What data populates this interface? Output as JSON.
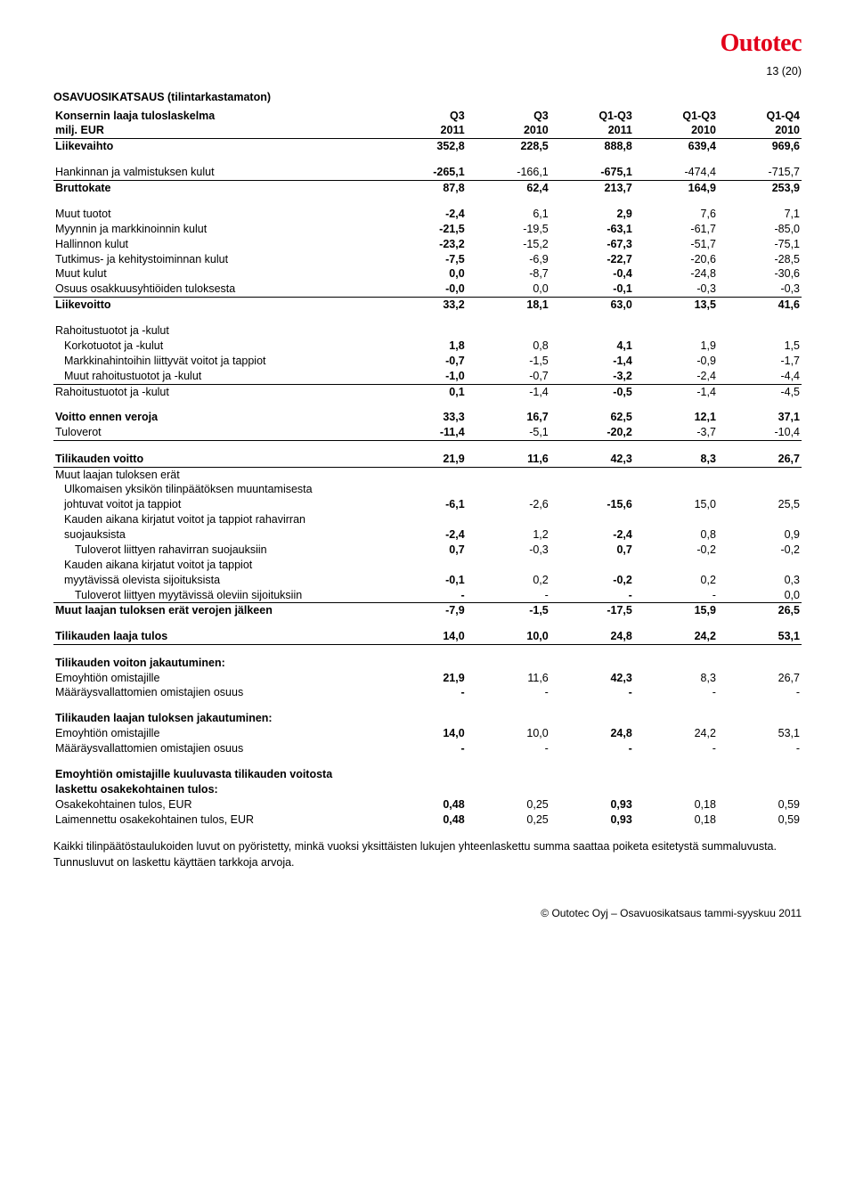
{
  "logo": "Outotec",
  "page_num": "13 (20)",
  "section_title": "OSAVUOSIKATSAUS (tilintarkastamaton)",
  "col_headers_row1": [
    "Konsernin laaja tuloslaskelma",
    "Q3",
    "Q3",
    "Q1-Q3",
    "Q1-Q3",
    "Q1-Q4"
  ],
  "col_headers_row2": [
    "milj. EUR",
    "2011",
    "2010",
    "2011",
    "2010",
    "2010"
  ],
  "rows": [
    {
      "label": "Liikevaihto",
      "vals": [
        "352,8",
        "228,5",
        "888,8",
        "639,4",
        "969,6"
      ],
      "bold": true,
      "bold_cols": [
        0,
        2
      ]
    },
    {
      "spacer": true
    },
    {
      "label": "Hankinnan ja valmistuksen kulut",
      "vals": [
        "-265,1",
        "-166,1",
        "-675,1",
        "-474,4",
        "-715,7"
      ],
      "bottom_border": true,
      "bold_cols": [
        0,
        2
      ]
    },
    {
      "label": "Bruttokate",
      "vals": [
        "87,8",
        "62,4",
        "213,7",
        "164,9",
        "253,9"
      ],
      "bold": true
    },
    {
      "spacer": true
    },
    {
      "label": "Muut tuotot",
      "vals": [
        "-2,4",
        "6,1",
        "2,9",
        "7,6",
        "7,1"
      ],
      "bold_cols": [
        0,
        2
      ]
    },
    {
      "label": "Myynnin ja markkinoinnin kulut",
      "vals": [
        "-21,5",
        "-19,5",
        "-63,1",
        "-61,7",
        "-85,0"
      ],
      "bold_cols": [
        0,
        2
      ]
    },
    {
      "label": "Hallinnon kulut",
      "vals": [
        "-23,2",
        "-15,2",
        "-67,3",
        "-51,7",
        "-75,1"
      ],
      "bold_cols": [
        0,
        2
      ]
    },
    {
      "label": "Tutkimus- ja kehitystoiminnan kulut",
      "vals": [
        "-7,5",
        "-6,9",
        "-22,7",
        "-20,6",
        "-28,5"
      ],
      "bold_cols": [
        0,
        2
      ]
    },
    {
      "label": "Muut kulut",
      "vals": [
        "0,0",
        "-8,7",
        "-0,4",
        "-24,8",
        "-30,6"
      ],
      "bold_cols": [
        0,
        2
      ]
    },
    {
      "label": "Osuus osakkuusyhtiöiden tuloksesta",
      "vals": [
        "-0,0",
        "0,0",
        "-0,1",
        "-0,3",
        "-0,3"
      ],
      "bottom_border": true,
      "bold_cols": [
        0,
        2
      ]
    },
    {
      "label": "Liikevoitto",
      "vals": [
        "33,2",
        "18,1",
        "63,0",
        "13,5",
        "41,6"
      ],
      "bold": true
    },
    {
      "spacer": true
    },
    {
      "label": "Rahoitustuotot ja -kulut",
      "vals": [
        "",
        "",
        "",
        "",
        ""
      ]
    },
    {
      "label": "Korkotuotot ja -kulut",
      "vals": [
        "1,8",
        "0,8",
        "4,1",
        "1,9",
        "1,5"
      ],
      "indent": true,
      "bold_cols": [
        0,
        2
      ]
    },
    {
      "label": "Markkinahintoihin liittyvät voitot ja tappiot",
      "vals": [
        "-0,7",
        "-1,5",
        "-1,4",
        "-0,9",
        "-1,7"
      ],
      "indent": true,
      "bold_cols": [
        0,
        2
      ]
    },
    {
      "label": "Muut rahoitustuotot ja -kulut",
      "vals": [
        "-1,0",
        "-0,7",
        "-3,2",
        "-2,4",
        "-4,4"
      ],
      "indent": true,
      "bottom_border": true,
      "bold_cols": [
        0,
        2
      ]
    },
    {
      "label": "Rahoitustuotot ja -kulut",
      "vals": [
        "0,1",
        "-1,4",
        "-0,5",
        "-1,4",
        "-4,5"
      ],
      "bold_cols": [
        0,
        2
      ]
    },
    {
      "spacer": true
    },
    {
      "label": "Voitto ennen veroja",
      "vals": [
        "33,3",
        "16,7",
        "62,5",
        "12,1",
        "37,1"
      ],
      "bold": true
    },
    {
      "label": "Tuloverot",
      "vals": [
        "-11,4",
        "-5,1",
        "-20,2",
        "-3,7",
        "-10,4"
      ],
      "bottom_border": true,
      "bold_cols": [
        0,
        2
      ]
    },
    {
      "spacer": true
    },
    {
      "label": "Tilikauden voitto",
      "vals": [
        "21,9",
        "11,6",
        "42,3",
        "8,3",
        "26,7"
      ],
      "bold": true,
      "bottom_border": true
    },
    {
      "label": "Muut laajan tuloksen erät",
      "vals": [
        "",
        "",
        "",
        "",
        ""
      ]
    },
    {
      "label": "Ulkomaisen yksikön tilinpäätöksen muuntamisesta",
      "vals": [
        "",
        "",
        "",
        "",
        ""
      ],
      "indent": true
    },
    {
      "label": "johtuvat voitot ja tappiot",
      "vals": [
        "-6,1",
        "-2,6",
        "-15,6",
        "15,0",
        "25,5"
      ],
      "indent": true,
      "bold_cols": [
        0,
        2
      ]
    },
    {
      "label": "Kauden aikana kirjatut voitot ja tappiot rahavirran",
      "vals": [
        "",
        "",
        "",
        "",
        ""
      ],
      "indent": true
    },
    {
      "label": "suojauksista",
      "vals": [
        "-2,4",
        "1,2",
        "-2,4",
        "0,8",
        "0,9"
      ],
      "indent": true,
      "bold_cols": [
        0,
        2
      ]
    },
    {
      "label": "Tuloverot liittyen rahavirran suojauksiin",
      "vals": [
        "0,7",
        "-0,3",
        "0,7",
        "-0,2",
        "-0,2"
      ],
      "indent": true,
      "indent2": true,
      "bold_cols": [
        0,
        2
      ]
    },
    {
      "label": "Kauden aikana kirjatut voitot ja tappiot",
      "vals": [
        "",
        "",
        "",
        "",
        ""
      ],
      "indent": true
    },
    {
      "label": "myytävissä olevista sijoituksista",
      "vals": [
        "-0,1",
        "0,2",
        "-0,2",
        "0,2",
        "0,3"
      ],
      "indent": true,
      "bold_cols": [
        0,
        2
      ]
    },
    {
      "label": "Tuloverot liittyen myytävissä oleviin sijoituksiin",
      "vals": [
        "-",
        "-",
        "-",
        "-",
        "0,0"
      ],
      "indent": true,
      "indent2": true,
      "bottom_border": true,
      "bold_cols": [
        0,
        2
      ]
    },
    {
      "label": "Muut laajan tuloksen erät verojen jälkeen",
      "vals": [
        "-7,9",
        "-1,5",
        "-17,5",
        "15,9",
        "26,5"
      ],
      "bold": true
    },
    {
      "spacer": true
    },
    {
      "label": "Tilikauden laaja tulos",
      "vals": [
        "14,0",
        "10,0",
        "24,8",
        "24,2",
        "53,1"
      ],
      "bold": true,
      "bottom_border": true
    },
    {
      "spacer": true
    },
    {
      "label": "Tilikauden voiton jakautuminen:",
      "vals": [
        "",
        "",
        "",
        "",
        ""
      ],
      "bold": true
    },
    {
      "label": "Emoyhtiön omistajille",
      "vals": [
        "21,9",
        "11,6",
        "42,3",
        "8,3",
        "26,7"
      ],
      "bold_cols": [
        0,
        2
      ]
    },
    {
      "label": "Määräysvallattomien omistajien osuus",
      "vals": [
        "-",
        "-",
        "-",
        "-",
        "-"
      ],
      "bold_cols": [
        0,
        2
      ]
    },
    {
      "spacer": true
    },
    {
      "label": "Tilikauden laajan tuloksen jakautuminen:",
      "vals": [
        "",
        "",
        "",
        "",
        ""
      ],
      "bold": true
    },
    {
      "label": "Emoyhtiön omistajille",
      "vals": [
        "14,0",
        "10,0",
        "24,8",
        "24,2",
        "53,1"
      ],
      "bold_cols": [
        0,
        2
      ]
    },
    {
      "label": "Määräysvallattomien omistajien osuus",
      "vals": [
        "-",
        "-",
        "-",
        "-",
        "-"
      ],
      "bold_cols": [
        0,
        2
      ]
    },
    {
      "spacer": true
    },
    {
      "label": "Emoyhtiön omistajille kuuluvasta tilikauden voitosta",
      "vals": [
        "",
        "",
        "",
        "",
        ""
      ],
      "bold": true
    },
    {
      "label": "laskettu osakekohtainen tulos:",
      "vals": [
        "",
        "",
        "",
        "",
        ""
      ],
      "bold": true
    },
    {
      "label": "Osakekohtainen tulos, EUR",
      "vals": [
        "0,48",
        "0,25",
        "0,93",
        "0,18",
        "0,59"
      ],
      "bold_cols": [
        0,
        2
      ]
    },
    {
      "label": "Laimennettu osakekohtainen tulos, EUR",
      "vals": [
        "0,48",
        "0,25",
        "0,93",
        "0,18",
        "0,59"
      ],
      "bold_cols": [
        0,
        2
      ]
    }
  ],
  "footnote": "Kaikki tilinpäätöstaulukoiden luvut on pyöristetty, minkä vuoksi yksittäisten lukujen yhteenlaskettu summa saattaa poiketa esitetystä summaluvusta. Tunnusluvut on laskettu käyttäen tarkkoja arvoja.",
  "footer": "© Outotec Oyj – Osavuosikatsaus tammi-syyskuu 2011"
}
